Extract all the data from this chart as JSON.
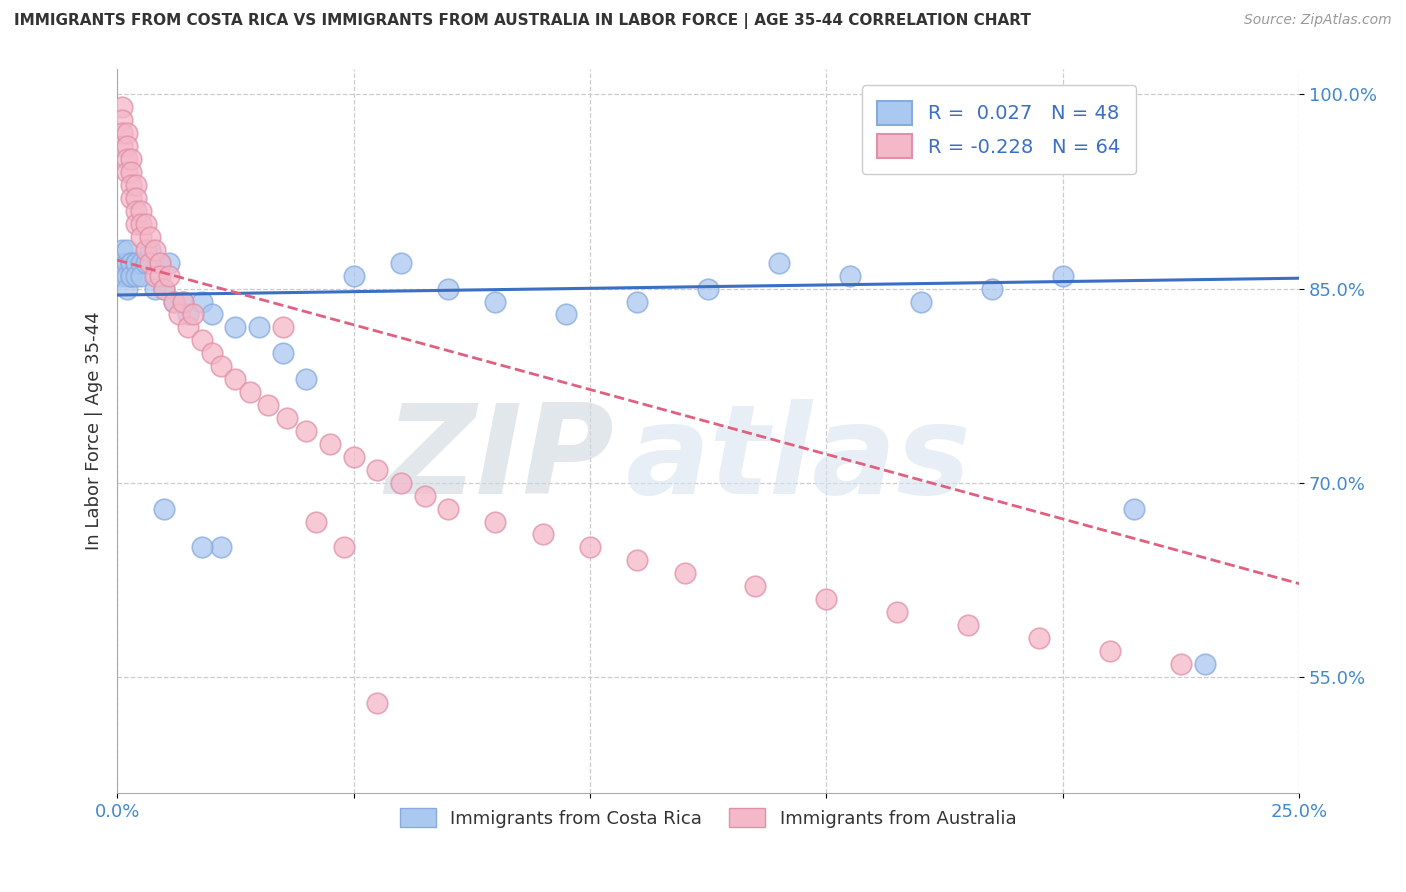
{
  "title": "IMMIGRANTS FROM COSTA RICA VS IMMIGRANTS FROM AUSTRALIA IN LABOR FORCE | AGE 35-44 CORRELATION CHART",
  "source": "Source: ZipAtlas.com",
  "ylabel": "In Labor Force | Age 35-44",
  "xlim": [
    0.0,
    0.25
  ],
  "ylim": [
    0.46,
    1.02
  ],
  "yticks": [
    0.55,
    0.7,
    0.85,
    1.0
  ],
  "ytick_labels": [
    "55.0%",
    "70.0%",
    "85.0%",
    "100.0%"
  ],
  "xticks": [
    0.0,
    0.05,
    0.1,
    0.15,
    0.2,
    0.25
  ],
  "xtick_labels": [
    "0.0%",
    "",
    "",
    "",
    "",
    "25.0%"
  ],
  "blue_face": "#aac8f0",
  "blue_edge": "#88aadd",
  "pink_face": "#f4b8c8",
  "pink_edge": "#e090a8",
  "blue_line": "#3a6fc4",
  "pink_line": "#e06080",
  "watermark_color": "#d8e4f0",
  "costa_rica_x": [
    0.001,
    0.001,
    0.001,
    0.002,
    0.002,
    0.002,
    0.002,
    0.003,
    0.003,
    0.003,
    0.003,
    0.004,
    0.004,
    0.004,
    0.005,
    0.005,
    0.006,
    0.007,
    0.008,
    0.009,
    0.01,
    0.011,
    0.012,
    0.014,
    0.015,
    0.018,
    0.02,
    0.025,
    0.03,
    0.035,
    0.04,
    0.05,
    0.06,
    0.07,
    0.08,
    0.095,
    0.11,
    0.125,
    0.14,
    0.155,
    0.17,
    0.185,
    0.2,
    0.215,
    0.23,
    0.01,
    0.022,
    0.018
  ],
  "costa_rica_y": [
    0.87,
    0.86,
    0.88,
    0.87,
    0.88,
    0.86,
    0.85,
    0.87,
    0.86,
    0.87,
    0.86,
    0.87,
    0.87,
    0.86,
    0.87,
    0.86,
    0.87,
    0.88,
    0.85,
    0.87,
    0.85,
    0.87,
    0.84,
    0.84,
    0.83,
    0.84,
    0.83,
    0.82,
    0.82,
    0.8,
    0.78,
    0.86,
    0.87,
    0.85,
    0.84,
    0.83,
    0.84,
    0.85,
    0.87,
    0.86,
    0.84,
    0.85,
    0.86,
    0.68,
    0.56,
    0.68,
    0.65,
    0.65
  ],
  "australia_x": [
    0.001,
    0.001,
    0.001,
    0.001,
    0.002,
    0.002,
    0.002,
    0.002,
    0.003,
    0.003,
    0.003,
    0.003,
    0.004,
    0.004,
    0.004,
    0.004,
    0.005,
    0.005,
    0.005,
    0.006,
    0.006,
    0.007,
    0.007,
    0.008,
    0.008,
    0.009,
    0.009,
    0.01,
    0.011,
    0.012,
    0.013,
    0.014,
    0.015,
    0.016,
    0.018,
    0.02,
    0.022,
    0.025,
    0.028,
    0.032,
    0.036,
    0.04,
    0.045,
    0.05,
    0.055,
    0.06,
    0.065,
    0.07,
    0.08,
    0.09,
    0.1,
    0.11,
    0.12,
    0.135,
    0.15,
    0.165,
    0.18,
    0.195,
    0.21,
    0.225,
    0.035,
    0.042,
    0.048,
    0.055
  ],
  "australia_y": [
    0.99,
    0.98,
    0.97,
    0.96,
    0.97,
    0.96,
    0.95,
    0.94,
    0.95,
    0.94,
    0.93,
    0.92,
    0.93,
    0.92,
    0.91,
    0.9,
    0.91,
    0.9,
    0.89,
    0.9,
    0.88,
    0.89,
    0.87,
    0.88,
    0.86,
    0.87,
    0.86,
    0.85,
    0.86,
    0.84,
    0.83,
    0.84,
    0.82,
    0.83,
    0.81,
    0.8,
    0.79,
    0.78,
    0.77,
    0.76,
    0.75,
    0.74,
    0.73,
    0.72,
    0.71,
    0.7,
    0.69,
    0.68,
    0.67,
    0.66,
    0.65,
    0.64,
    0.63,
    0.62,
    0.61,
    0.6,
    0.59,
    0.58,
    0.57,
    0.56,
    0.82,
    0.67,
    0.65,
    0.53
  ],
  "cr_line_x": [
    0.0,
    0.25
  ],
  "cr_line_y": [
    0.845,
    0.858
  ],
  "au_line_x": [
    0.0,
    0.25
  ],
  "au_line_y": [
    0.872,
    0.622
  ]
}
